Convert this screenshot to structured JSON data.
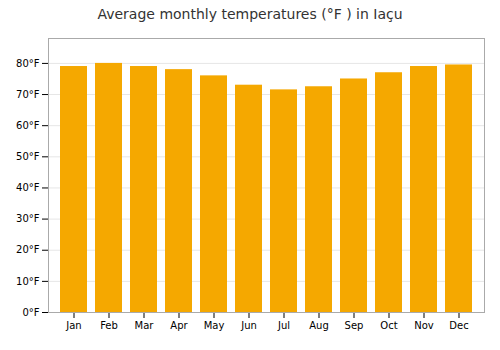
{
  "chart_data": {
    "type": "bar",
    "title": "Average monthly temperatures (°F ) in Iaçu",
    "categories": [
      "Jan",
      "Feb",
      "Mar",
      "Apr",
      "May",
      "Jun",
      "Jul",
      "Aug",
      "Sep",
      "Oct",
      "Nov",
      "Dec"
    ],
    "values": [
      79,
      80,
      79,
      78,
      76,
      73,
      71.5,
      72.5,
      75,
      77,
      79,
      79.5
    ],
    "color": "#F5A800",
    "ylim": [
      0,
      88
    ],
    "yticks": [
      {
        "value": 0,
        "label": "0°F"
      },
      {
        "value": 10,
        "label": "10°F"
      },
      {
        "value": 20,
        "label": "20°F"
      },
      {
        "value": 30,
        "label": "30°F"
      },
      {
        "value": 40,
        "label": "40°F"
      },
      {
        "value": 50,
        "label": "50°F"
      },
      {
        "value": 60,
        "label": "60°F"
      },
      {
        "value": 70,
        "label": "70°F"
      },
      {
        "value": 80,
        "label": "80°F"
      }
    ],
    "grid": true
  }
}
